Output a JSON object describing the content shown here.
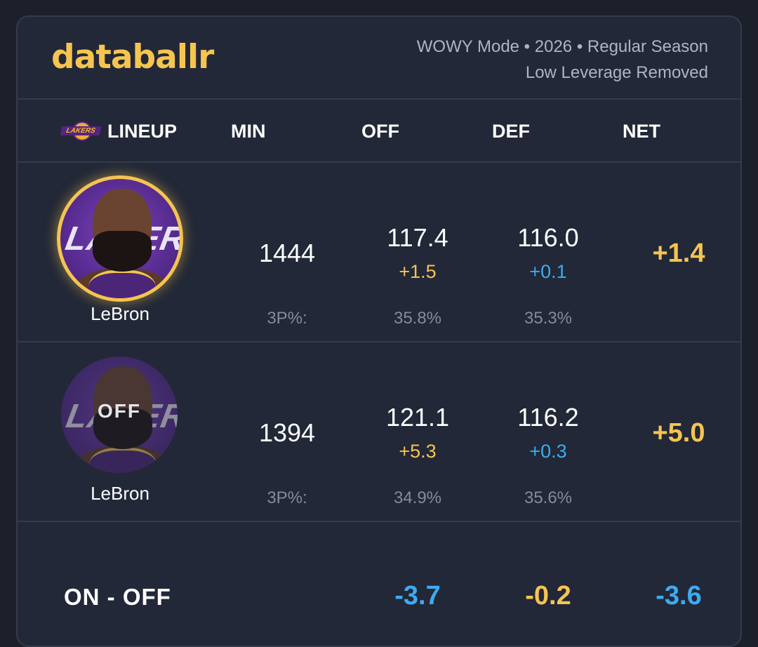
{
  "brand": "databallr",
  "meta": {
    "line1": "WOWY Mode • 2026 • Regular Season",
    "line2": "Low Leverage Removed"
  },
  "columns": {
    "team_logo_icon": "lakers-logo-icon",
    "lineup": "LINEUP",
    "min": "MIN",
    "off": "OFF",
    "def": "DEF",
    "net": "NET"
  },
  "rows": [
    {
      "state": "on",
      "player": "LeBron",
      "min": "1444",
      "off": "117.4",
      "off_delta": "+1.5",
      "def": "116.0",
      "def_delta": "+0.1",
      "net": "+1.4",
      "threes_label": "3P%:",
      "off_3p": "35.8%",
      "def_3p": "35.3%"
    },
    {
      "state": "off",
      "off_badge": "OFF",
      "player": "LeBron",
      "min": "1394",
      "off": "121.1",
      "off_delta": "+5.3",
      "def": "116.2",
      "def_delta": "+0.3",
      "net": "+5.0",
      "threes_label": "3P%:",
      "off_3p": "34.9%",
      "def_3p": "35.6%"
    }
  ],
  "footer": {
    "label": "ON - OFF",
    "off": "-3.7",
    "def": "-0.2",
    "net": "-3.6"
  },
  "colors": {
    "accent_yellow": "#f5c451",
    "accent_blue": "#3eaaf0",
    "card_bg": "#222837"
  }
}
